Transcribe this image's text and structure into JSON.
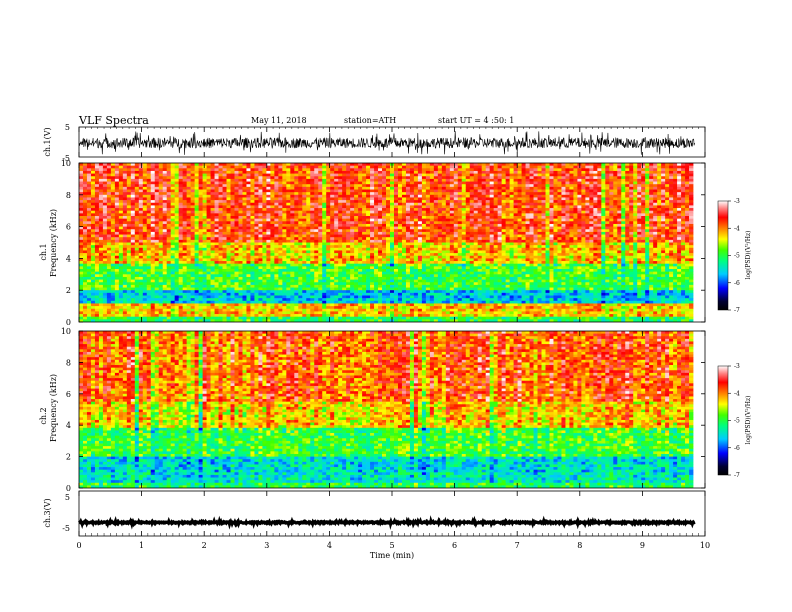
{
  "header": {
    "title": "VLF Spectra",
    "date": "May 11, 2018",
    "station": "station=ATH",
    "start": "start UT = 4 :50: 1"
  },
  "chart_data": [
    {
      "type": "line",
      "panel": "ch1-waveform",
      "ylabel": "ch.1(V)",
      "ylim": [
        -5,
        5
      ],
      "yticks": [
        "5",
        "-5"
      ],
      "xlim": [
        0,
        10
      ],
      "description_values": {
        "mean": -0.3,
        "noise_amplitude": 2.5
      }
    },
    {
      "type": "heatmap",
      "panel": "ch1-spectrogram",
      "ylabel_top": "ch.1",
      "ylabel": "Frequency (kHz)",
      "ylim": [
        0,
        10
      ],
      "yticks": [
        "0",
        "2",
        "4",
        "6",
        "8",
        "10"
      ],
      "xlim": [
        0,
        9.8
      ],
      "colorbar": {
        "label": "log(PSD)(V²/Hz)",
        "range": [
          -7,
          -3
        ],
        "ticks": [
          "-3",
          "-4",
          "-5",
          "-6",
          "-7"
        ]
      },
      "band_levels": [
        {
          "from": 0.0,
          "to": 0.3,
          "level": -5.0
        },
        {
          "from": 0.3,
          "to": 1.2,
          "level": -4.2
        },
        {
          "from": 1.2,
          "to": 2.0,
          "level": -5.6
        },
        {
          "from": 2.0,
          "to": 3.6,
          "level": -4.9
        },
        {
          "from": 3.6,
          "to": 5.0,
          "level": -4.2
        },
        {
          "from": 5.0,
          "to": 10.0,
          "level": -3.7
        }
      ]
    },
    {
      "type": "heatmap",
      "panel": "ch2-spectrogram",
      "ylabel_top": "ch.2",
      "ylabel": "Frequency (kHz)",
      "ylim": [
        0,
        10
      ],
      "yticks": [
        "0",
        "2",
        "4",
        "6",
        "8",
        "10"
      ],
      "xlim": [
        0,
        9.8
      ],
      "colorbar": {
        "label": "log(PSD)(V²/Hz)",
        "range": [
          -7,
          -3
        ],
        "ticks": [
          "-3",
          "-4",
          "-5",
          "-6",
          "-7"
        ]
      },
      "band_levels": [
        {
          "from": 0.0,
          "to": 0.4,
          "level": -5.0
        },
        {
          "from": 0.4,
          "to": 1.0,
          "level": -5.4
        },
        {
          "from": 1.0,
          "to": 2.0,
          "level": -5.5
        },
        {
          "from": 2.0,
          "to": 3.8,
          "level": -4.9
        },
        {
          "from": 3.8,
          "to": 5.5,
          "level": -4.2
        },
        {
          "from": 5.5,
          "to": 10.0,
          "level": -3.8
        }
      ]
    },
    {
      "type": "line",
      "panel": "ch3-waveform",
      "ylabel": "ch.3(V)",
      "ylim": [
        -5,
        5
      ],
      "yticks": [
        "5",
        "-5"
      ],
      "xlim": [
        0,
        10
      ],
      "description_values": {
        "mean": -2.0,
        "noise_amplitude": 0.2
      }
    },
    {
      "type": "axis",
      "panel": "time-axis",
      "xlabel": "Time (min)",
      "xlim": [
        0,
        10
      ],
      "xticks": [
        "0",
        "1",
        "2",
        "3",
        "4",
        "5",
        "6",
        "7",
        "8",
        "9",
        "10"
      ]
    }
  ]
}
